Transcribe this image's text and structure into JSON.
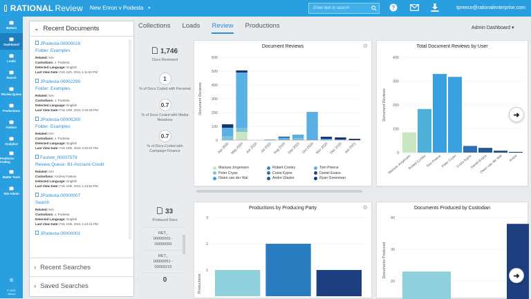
{
  "app": {
    "brand_bold": "RATIONAL",
    "brand_light": "Review",
    "case_name": "New Enron v Podesta",
    "case_chevron": "▼"
  },
  "search": {
    "placeholder": "Enter text to search"
  },
  "user": {
    "email": "tpreece@rationalenterprise.com"
  },
  "nav": [
    {
      "label": "Matters",
      "icon": "briefcase-icon"
    },
    {
      "label": "Dashboard",
      "icon": "dashboard-icon",
      "active": true
    },
    {
      "label": "Loads",
      "icon": "cloud-upload-icon"
    },
    {
      "label": "Search",
      "icon": "search-icon"
    },
    {
      "label": "Review Queue",
      "icon": "review-queue-icon"
    },
    {
      "label": "Productions",
      "icon": "productions-icon"
    },
    {
      "label": "Folders",
      "icon": "folder-icon"
    },
    {
      "label": "Analytics",
      "icon": "analytics-icon"
    },
    {
      "label": "Predictive Coding",
      "icon": "predictive-coding-icon"
    },
    {
      "label": "Matter Tools",
      "icon": "wrench-icon"
    },
    {
      "label": "Site Admin",
      "icon": "site-admin-icon"
    }
  ],
  "nav_footer": {
    "year": "© 2021",
    "about": "About"
  },
  "recent": {
    "title": "Recent Documents",
    "labels": {
      "related": "Related:",
      "custodians": "Custodians:",
      "lang": "Detected Language:",
      "lastview": "Last View Date:"
    },
    "docs": [
      {
        "id": "JPodesta-00000016",
        "folder": "Folder: Examples",
        "related": "N/A",
        "custodians": "J. Podesta",
        "lang": "English",
        "lastview": "Feb 11th, 2021 1:11:52 PM"
      },
      {
        "id": "JPodesta-00002290",
        "folder": "Folder: Examples",
        "related": "N/A",
        "custodians": "J. Podesta",
        "lang": "English",
        "lastview": "Feb 10th, 2021 2:45:48 PM"
      },
      {
        "id": "JPodesta-00000260",
        "folder": "Folder: Examples",
        "related": "N/A",
        "custodians": "J. Podesta",
        "lang": "English",
        "lastview": "Feb 10th, 2021 2:40:01 PM"
      },
      {
        "id": "Fastow_00007579",
        "folder": "Review Queue: B1-Account-Credit",
        "related": "N/A",
        "custodians": "Andrew Fastow",
        "lang": "English",
        "lastview": "Feb 10th, 2021 1:24:54 PM"
      },
      {
        "id": "JPodesta-00000007",
        "folder": "Search",
        "related": "N/A",
        "custodians": "J. Podesta",
        "lang": "English",
        "lastview": "Feb 10th, 2021 1:24:41 PM"
      },
      {
        "id": "JPodesta-00000001",
        "folder": "",
        "related": "",
        "custodians": "",
        "lang": "",
        "lastview": ""
      }
    ],
    "recent_searches": "Recent Searches",
    "saved_searches": "Saved Searches"
  },
  "tabs": [
    "Collections",
    "Loads",
    "Review",
    "Productions"
  ],
  "active_tab": "Review",
  "dashboard_select": "Admin Dashboard ▾",
  "stats": {
    "docs_reviewed": {
      "value": "1,746",
      "label": "Docs Reviewed"
    },
    "personal": {
      "value": "1",
      "label": "% of Docs Coded with Personal"
    },
    "media": {
      "value": "0.7",
      "label": "% of Docs Coded with Media Relations"
    },
    "campaign": {
      "value": "0.7",
      "label": "% of Docs Coded with Campaign Finance"
    },
    "produced": {
      "value": "33",
      "label": "Produced Docs"
    },
    "bottom": {
      "value": "0"
    }
  },
  "productions_list": [
    {
      "line1": "RET_",
      "line2": "00000001 -",
      "line3": "00000050"
    },
    {
      "line1": "RET_",
      "line2": "00000051 -",
      "line3": "00000215"
    }
  ],
  "colors": {
    "brand": "#2a9fe0",
    "nav_active": "#1c7fc0",
    "link": "#2a8ed6"
  },
  "chart_data": [
    {
      "type": "bar",
      "title": "Document Reviews",
      "ylabel": "Document Reviews",
      "ylim": [
        0,
        600
      ],
      "yticks": [
        0,
        100,
        200,
        300,
        400,
        500,
        600
      ],
      "categories": [
        "Apr 2020",
        "May 2020",
        "Jun 2020",
        "Jul 2020",
        "Aug 2020",
        "Sep 2020",
        "Oct 2020",
        "Nov 2020",
        "Dec 2020",
        "Jan 2021"
      ],
      "stacked": true,
      "series": [
        {
          "name": "Marissa Jorgensen",
          "color": "#c9e6c3",
          "values": [
            0,
            60,
            0,
            0,
            0,
            0,
            0,
            0,
            0,
            0
          ]
        },
        {
          "name": "Peter Cryan",
          "color": "#7fc3d9",
          "values": [
            30,
            30,
            0,
            0,
            5,
            15,
            0,
            0,
            0,
            0
          ]
        },
        {
          "name": "Owen van der Wal",
          "color": "#3f9fd6",
          "values": [
            0,
            0,
            0,
            0,
            0,
            0,
            0,
            0,
            0,
            0
          ]
        },
        {
          "name": "Robert Conley",
          "color": "#3a86c6",
          "values": [
            0,
            0,
            0,
            0,
            0,
            0,
            0,
            0,
            0,
            0
          ]
        },
        {
          "name": "Costa Kypre",
          "color": "#2c6fb3",
          "values": [
            0,
            0,
            0,
            0,
            0,
            0,
            0,
            0,
            0,
            0
          ]
        },
        {
          "name": "Andre Glazier",
          "color": "#225a9a",
          "values": [
            0,
            0,
            0,
            0,
            0,
            0,
            0,
            0,
            0,
            0
          ]
        },
        {
          "name": "Tom Preece",
          "color": "#5ab0e2",
          "values": [
            60,
            400,
            0,
            5,
            15,
            25,
            205,
            10,
            5,
            0
          ]
        },
        {
          "name": "Daniel Evans",
          "color": "#1d4a8a",
          "values": [
            0,
            0,
            0,
            0,
            0,
            0,
            0,
            0,
            0,
            0
          ]
        },
        {
          "name": "Ryan Greenman",
          "color": "#16356d",
          "values": [
            25,
            15,
            0,
            0,
            5,
            0,
            0,
            15,
            15,
            10
          ]
        }
      ]
    },
    {
      "type": "bar",
      "title": "Total Document Reviews by User",
      "ylabel": "Document Reviews",
      "ylim": [
        0,
        400
      ],
      "yticks": [
        0,
        100,
        200,
        300,
        400
      ],
      "categories": [
        "Marissa Jorgensen",
        "Robert Conley",
        "Tom Preece",
        "Peter Cryan",
        "Costa Kypre",
        "Daniel Evans",
        "Owen van der Wal",
        "Andre"
      ],
      "values": [
        85,
        183,
        330,
        318,
        28,
        20,
        8,
        3
      ]
    },
    {
      "type": "bar",
      "title": "Productions by Producing Party",
      "ylabel": "Productions",
      "ylim": [
        0,
        3
      ],
      "yticks": [
        1,
        2,
        3
      ],
      "values": [
        1,
        2,
        1
      ]
    },
    {
      "type": "bar",
      "title": "Documents Produced by Custodian",
      "ylabel": "Documents Produced",
      "ylim": [
        20,
        40
      ],
      "yticks": [
        20,
        30,
        40
      ],
      "values": [
        23,
        38
      ]
    }
  ]
}
